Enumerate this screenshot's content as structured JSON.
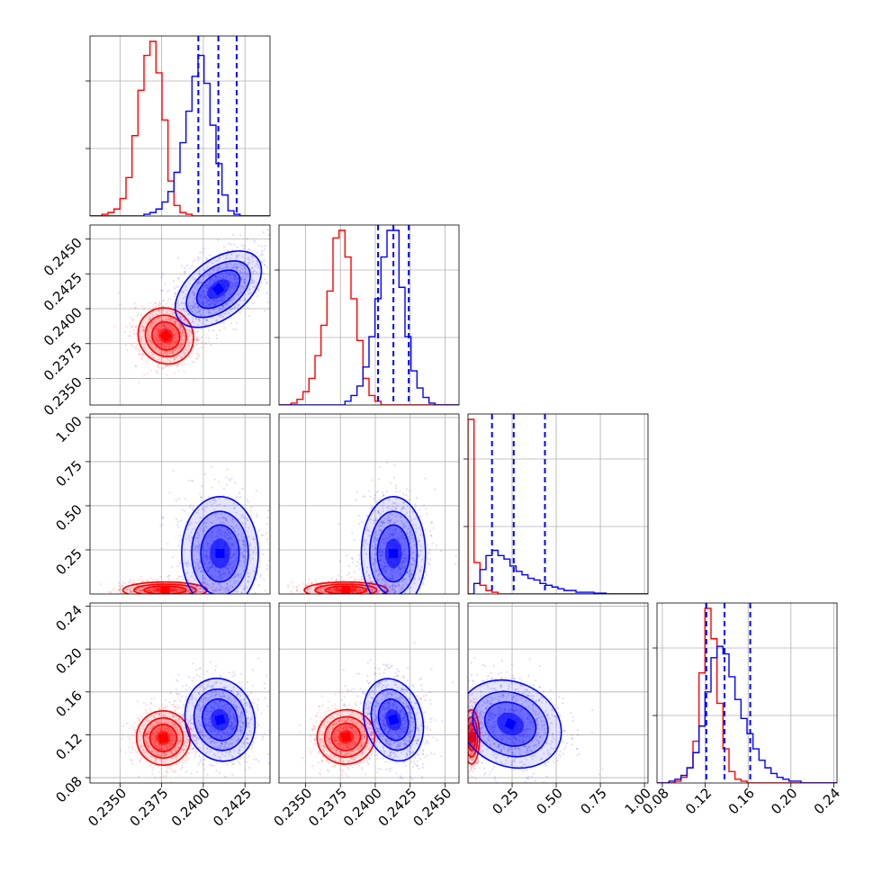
{
  "chart_data": {
    "type": "corner",
    "grid": true,
    "colors": {
      "series_a": "#ff0000",
      "series_b": "#0000ff"
    },
    "series": [
      {
        "color": "#ff0000",
        "means": [
          0.2377,
          0.238,
          0.03,
          0.117
        ]
      },
      {
        "color": "#0000ff",
        "means": [
          0.2409,
          0.2412,
          0.25,
          0.135
        ]
      }
    ],
    "parameters": [
      {
        "range": [
          0.2332,
          0.244
        ],
        "ticks": [
          0.235,
          0.2375,
          0.24,
          0.2425
        ],
        "tick_labels": [
          "0.2350",
          "0.2375",
          "0.2400",
          "0.2425"
        ]
      },
      {
        "range": [
          0.2331,
          0.246
        ],
        "ticks": [
          0.235,
          0.2375,
          0.24,
          0.2425,
          0.245
        ],
        "tick_labels": [
          "0.2350",
          "0.2375",
          "0.2400",
          "0.2425",
          "0.2450"
        ]
      },
      {
        "range": [
          0.0,
          1.02
        ],
        "ticks": [
          0.25,
          0.5,
          0.75,
          1.0
        ],
        "tick_labels": [
          "0.25",
          "0.50",
          "0.75",
          "1.00"
        ]
      },
      {
        "range": [
          0.075,
          0.243
        ],
        "ticks": [
          0.08,
          0.12,
          0.16,
          0.2,
          0.24
        ],
        "tick_labels": [
          "0.08",
          "0.12",
          "0.16",
          "0.20",
          "0.24"
        ]
      }
    ],
    "quantile_lines": [
      [
        0.2397,
        0.2409,
        0.242
      ],
      [
        0.2402,
        0.2413,
        0.2424
      ],
      [
        0.136,
        0.259,
        0.436
      ],
      [
        0.121,
        0.138,
        0.162
      ]
    ],
    "histograms": [
      {
        "bins": [
          0.2332,
          0.244
        ],
        "red": [
          0,
          0,
          1,
          2,
          4,
          10,
          22,
          46,
          72,
          92,
          100,
          82,
          55,
          20,
          6,
          2,
          1,
          0,
          0,
          0,
          0,
          0,
          0,
          0,
          0,
          0,
          0,
          0,
          0,
          0
        ],
        "blue": [
          0,
          0,
          0,
          0,
          0,
          0,
          0,
          0,
          0,
          1,
          2,
          4,
          8,
          14,
          25,
          42,
          60,
          80,
          92,
          76,
          52,
          30,
          12,
          3,
          1,
          0,
          0,
          0,
          0,
          0
        ]
      },
      {
        "bins": [
          0.2331,
          0.246
        ],
        "red": [
          0,
          0,
          1,
          3,
          7,
          14,
          26,
          42,
          60,
          88,
          92,
          78,
          56,
          34,
          14,
          5,
          2,
          0,
          0,
          0,
          0,
          0,
          0,
          0,
          0,
          0,
          0,
          0,
          0,
          0
        ],
        "blue": [
          0,
          0,
          0,
          0,
          0,
          0,
          0,
          0,
          0,
          0,
          0,
          2,
          5,
          10,
          20,
          36,
          56,
          78,
          92,
          92,
          62,
          36,
          18,
          9,
          4,
          1,
          0,
          0,
          0,
          0
        ]
      },
      {
        "bins": [
          0.0,
          1.02
        ],
        "red": [
          100,
          18,
          5,
          2,
          1,
          0,
          0,
          0,
          0,
          0,
          0,
          0,
          0,
          0,
          0,
          0,
          0,
          0,
          0,
          0,
          0,
          0,
          0,
          0,
          0,
          0,
          0,
          0,
          0,
          0
        ],
        "blue": [
          0,
          6,
          14,
          22,
          25,
          22,
          20,
          16,
          13,
          11,
          9,
          8,
          6,
          5,
          4,
          3,
          2,
          2,
          1,
          1,
          1,
          0.5,
          0.5,
          0,
          0,
          0,
          0,
          0,
          0,
          0
        ]
      },
      {
        "bins": [
          0.075,
          0.243
        ],
        "red": [
          0,
          0,
          0,
          1,
          3,
          8,
          22,
          58,
          92,
          76,
          42,
          18,
          6,
          2,
          1,
          0,
          0,
          0,
          0,
          0,
          0,
          0,
          0,
          0,
          0,
          0,
          0,
          0,
          0,
          0
        ],
        "blue": [
          0,
          0,
          1,
          2,
          4,
          8,
          16,
          30,
          48,
          66,
          72,
          68,
          56,
          44,
          34,
          26,
          18,
          12,
          8,
          5,
          3,
          2,
          1,
          1,
          0,
          0,
          0,
          0,
          0,
          0
        ]
      }
    ],
    "joint": [
      {
        "pair": [
          1,
          0
        ],
        "red": {
          "mean": [
            0.23775,
            0.23805
          ],
          "sd": [
            0.0007,
            0.0009
          ],
          "angle": 40
        },
        "blue": {
          "mean": [
            0.2409,
            0.2414
          ],
          "sd": [
            0.0013,
            0.0009
          ],
          "angle": 38
        }
      },
      {
        "pair": [
          2,
          0
        ],
        "red": {
          "mean": [
            0.2377,
            0.022
          ],
          "sd": [
            0.0011,
            0.02
          ],
          "angle": 0
        },
        "blue": {
          "mean": [
            0.241,
            0.23
          ],
          "sd": [
            0.001,
            0.14
          ],
          "angle": 0
        }
      },
      {
        "pair": [
          2,
          1
        ],
        "red": {
          "mean": [
            0.2379,
            0.022
          ],
          "sd": [
            0.0013,
            0.02
          ],
          "angle": 0
        },
        "blue": {
          "mean": [
            0.2413,
            0.23
          ],
          "sd": [
            0.001,
            0.14
          ],
          "angle": 0
        }
      },
      {
        "pair": [
          3,
          0
        ],
        "red": {
          "mean": [
            0.2376,
            0.117
          ],
          "sd": [
            0.0007,
            0.011
          ],
          "angle": 10
        },
        "blue": {
          "mean": [
            0.241,
            0.134
          ],
          "sd": [
            0.0009,
            0.017
          ],
          "angle": 15
        }
      },
      {
        "pair": [
          3,
          1
        ],
        "red": {
          "mean": [
            0.2379,
            0.118
          ],
          "sd": [
            0.0009,
            0.011
          ],
          "angle": 10
        },
        "blue": {
          "mean": [
            0.2413,
            0.134
          ],
          "sd": [
            0.0009,
            0.017
          ],
          "angle": 15
        }
      },
      {
        "pair": [
          3,
          2
        ],
        "red": {
          "mean": [
            0.02,
            0.118
          ],
          "sd": [
            0.02,
            0.011
          ],
          "angle": 0
        },
        "blue": {
          "mean": [
            0.24,
            0.13
          ],
          "sd": [
            0.13,
            0.017
          ],
          "angle": -25
        }
      }
    ]
  }
}
